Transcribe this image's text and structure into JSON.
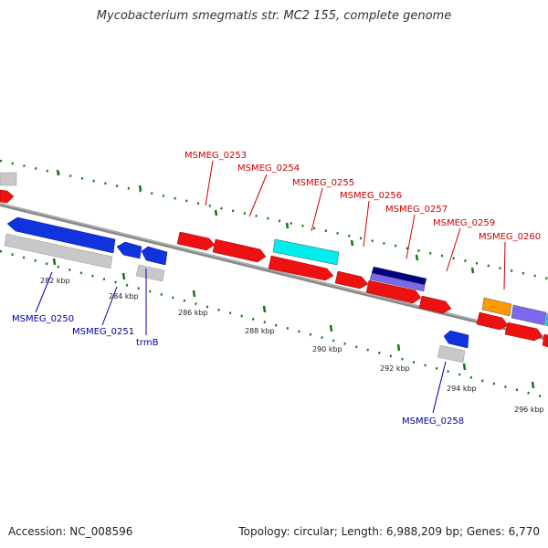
{
  "title": "Mycobacterium smegmatis str. MC2 155, complete genome",
  "footer": {
    "accession": "Accession: NC_008596",
    "summary": "Topology: circular; Length: 6,988,209 bp; Genes: 6,770"
  },
  "colors": {
    "forward_gene": "#ee1111",
    "reverse_gene": "#1133dd",
    "forward_label": "#cc0000",
    "reverse_label": "#000099",
    "tick": "#117711",
    "backbone": "#888888",
    "cds_gray": "#c8c8c8",
    "cyan": "#00eeee",
    "navy": "#000080",
    "slate": "#7b68ee",
    "orange": "#ff9900"
  },
  "kbp_labels": [
    "282 kbp",
    "284 kbp",
    "286 kbp",
    "288 kbp",
    "290 kbp",
    "292 kbp",
    "294 kbp",
    "296 kbp"
  ],
  "gene_labels_forward": [
    "MSMEG_0253",
    "MSMEG_0254",
    "MSMEG_0255",
    "MSMEG_0256",
    "MSMEG_0257",
    "MSMEG_0259",
    "MSMEG_0260"
  ],
  "gene_labels_reverse": [
    "MSMEG_0250",
    "MSMEG_0251",
    "trmB",
    "MSMEG_0258"
  ]
}
